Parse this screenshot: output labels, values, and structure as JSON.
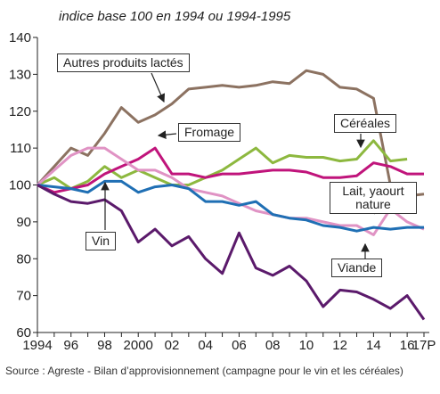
{
  "chart_data": {
    "type": "line",
    "subtitle": "indice base 100 en 1994 ou 1994-1995",
    "source": "Source : Agreste - Bilan d’approvisionnement (campagne pour le vin et les céréales)",
    "categories": [
      "1994",
      null,
      "96",
      null,
      "98",
      null,
      "2000",
      null,
      "02",
      null,
      "04",
      null,
      "06",
      null,
      "08",
      null,
      "10",
      null,
      "12",
      null,
      "14",
      null,
      "16",
      "17P"
    ],
    "ylim": [
      60,
      140
    ],
    "yticks": [
      60,
      70,
      80,
      90,
      100,
      110,
      120,
      130,
      140
    ],
    "series": [
      {
        "name": "Autres produits lactés",
        "color": "#8c7261",
        "values": [
          100,
          105,
          110,
          108,
          114,
          121,
          117,
          119,
          122,
          126,
          126.5,
          127,
          126.5,
          127,
          128,
          127.5,
          131,
          130,
          126.5,
          126,
          123.5,
          100,
          97,
          97.5
        ]
      },
      {
        "name": "Céréales",
        "color": "#8db83f",
        "values": [
          100,
          102,
          99,
          101,
          105,
          102,
          104,
          102,
          100,
          100,
          102,
          104,
          107,
          110,
          106,
          108,
          107.5,
          107.5,
          106.5,
          107,
          112,
          106.5,
          107,
          null
        ]
      },
      {
        "name": "Fromage",
        "color": "#c0147b",
        "values": [
          100,
          98,
          99,
          100,
          103,
          105,
          107,
          110,
          103,
          103,
          102,
          103,
          103,
          103.5,
          104,
          104,
          103.5,
          102,
          102,
          102.5,
          106,
          105,
          103,
          103
        ]
      },
      {
        "name": "Lait, yaourt nature",
        "color": "#e093c4",
        "values": [
          100,
          104,
          108,
          110,
          110,
          107,
          104,
          104,
          102,
          99,
          98,
          97,
          95,
          93,
          92,
          91,
          91,
          90,
          89,
          89,
          86.5,
          93.5,
          90,
          88
        ]
      },
      {
        "name": "Viande",
        "color": "#1f6fb4",
        "values": [
          100,
          99.5,
          99,
          98,
          101,
          101,
          98,
          99.5,
          100,
          99,
          95.5,
          95.5,
          94.5,
          95.5,
          92,
          91,
          90.5,
          89,
          88.5,
          87.5,
          88.5,
          88,
          88.5,
          88.5
        ]
      },
      {
        "name": "Vin",
        "color": "#5b1a6b",
        "values": [
          100,
          97.5,
          95.5,
          95,
          96,
          93,
          84.5,
          88,
          83.5,
          86,
          80,
          76,
          87,
          77.5,
          75.5,
          78,
          74,
          67,
          71.5,
          71,
          69,
          66.5,
          70,
          63.5
        ]
      }
    ]
  }
}
